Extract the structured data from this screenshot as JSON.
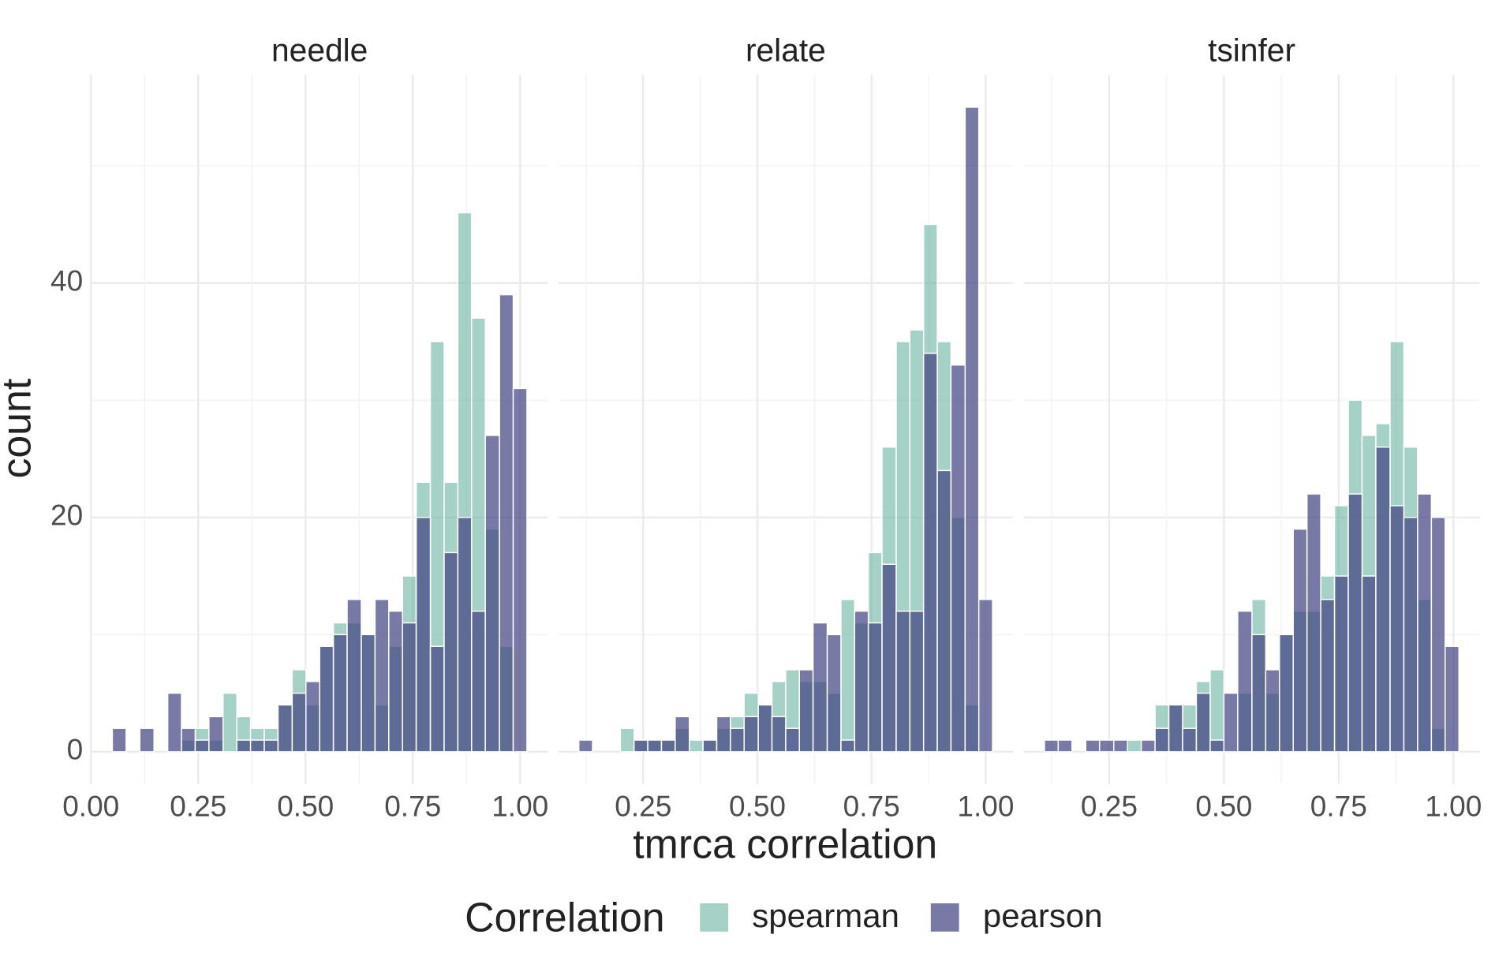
{
  "chart_data": {
    "type": "histogram",
    "xlabel": "tmrca correlation",
    "ylabel": "count",
    "legend_title": "Correlation",
    "series": [
      {
        "name": "spearman",
        "color": "#69b3a2",
        "opacity": 0.6
      },
      {
        "name": "pearson",
        "color": "#404080",
        "opacity": 0.7
      }
    ],
    "ylim": [
      -2.75,
      57.75
    ],
    "yticks": [
      0,
      20,
      40
    ],
    "y_minor_ticks": [
      10,
      30,
      50
    ],
    "grid": true,
    "facets": [
      {
        "title": "needle",
        "xlim": [
          0.002,
          1.064
        ],
        "xticks": [
          {
            "value": 0,
            "label": "0.00"
          },
          {
            "value": 0.25,
            "label": "0.25"
          },
          {
            "value": 0.5,
            "label": "0.50"
          },
          {
            "value": 0.75,
            "label": "0.75"
          },
          {
            "value": 1,
            "label": "1.00"
          }
        ],
        "x_minor_ticks": [
          0.125,
          0.375,
          0.625,
          0.875
        ],
        "bins": [
          0.05,
          0.082,
          0.114,
          0.147,
          0.179,
          0.211,
          0.243,
          0.275,
          0.308,
          0.34,
          0.372,
          0.404,
          0.436,
          0.469,
          0.501,
          0.533,
          0.565,
          0.597,
          0.63,
          0.662,
          0.694,
          0.726,
          0.758,
          0.791,
          0.823,
          0.855,
          0.887,
          0.919,
          0.952,
          0.984,
          1.016
        ],
        "counts": [
          [
            0,
            0,
            0,
            0,
            0,
            1,
            2,
            1,
            5,
            3,
            2,
            2,
            4,
            7,
            4,
            9,
            11,
            11,
            10,
            4,
            9,
            15,
            23,
            35,
            23,
            46,
            37,
            19,
            9,
            0
          ],
          [
            2,
            0,
            2,
            0,
            5,
            2,
            1,
            3,
            0,
            1,
            1,
            1,
            4,
            5,
            6,
            9,
            10,
            13,
            10,
            13,
            12,
            11,
            20,
            9,
            17,
            20,
            12,
            27,
            39,
            31
          ]
        ]
      },
      {
        "title": "relate",
        "xlim": [
          0.064,
          1.06
        ],
        "xticks": [
          {
            "value": 0.25,
            "label": "0.25"
          },
          {
            "value": 0.5,
            "label": "0.50"
          },
          {
            "value": 0.75,
            "label": "0.75"
          },
          {
            "value": 1,
            "label": "1.00"
          }
        ],
        "x_minor_ticks": [
          0.125,
          0.375,
          0.625,
          0.875
        ],
        "bins": [
          0.109,
          0.139,
          0.169,
          0.2,
          0.23,
          0.26,
          0.29,
          0.32,
          0.351,
          0.381,
          0.411,
          0.441,
          0.471,
          0.502,
          0.532,
          0.562,
          0.592,
          0.622,
          0.653,
          0.683,
          0.713,
          0.743,
          0.773,
          0.804,
          0.834,
          0.864,
          0.894,
          0.924,
          0.955,
          0.985,
          1.015
        ],
        "counts": [
          [
            0,
            0,
            0,
            2,
            1,
            1,
            1,
            2,
            1,
            1,
            2,
            3,
            5,
            4,
            6,
            7,
            6,
            6,
            5,
            13,
            11,
            17,
            26,
            35,
            36,
            45,
            35,
            20,
            4,
            0
          ],
          [
            1,
            0,
            0,
            0,
            1,
            1,
            1,
            3,
            0,
            1,
            3,
            2,
            3,
            4,
            3,
            2,
            7,
            11,
            10,
            1,
            12,
            11,
            16,
            12,
            12,
            34,
            24,
            33,
            55,
            13
          ]
        ]
      },
      {
        "title": "tsinfer",
        "xlim": [
          0.064,
          1.057
        ],
        "xticks": [
          {
            "value": 0.25,
            "label": "0.25"
          },
          {
            "value": 0.5,
            "label": "0.50"
          },
          {
            "value": 0.75,
            "label": "0.75"
          },
          {
            "value": 1,
            "label": "1.00"
          }
        ],
        "x_minor_ticks": [
          0.125,
          0.375,
          0.625,
          0.875
        ],
        "bins": [
          0.109,
          0.139,
          0.169,
          0.199,
          0.229,
          0.26,
          0.29,
          0.32,
          0.35,
          0.38,
          0.41,
          0.44,
          0.47,
          0.5,
          0.53,
          0.561,
          0.591,
          0.621,
          0.651,
          0.681,
          0.711,
          0.741,
          0.771,
          0.801,
          0.831,
          0.862,
          0.892,
          0.922,
          0.952,
          0.982,
          1.012
        ],
        "counts": [
          [
            0,
            0,
            0,
            0,
            0,
            0,
            1,
            0,
            4,
            4,
            4,
            6,
            7,
            0,
            5,
            13,
            5,
            10,
            12,
            12,
            15,
            21,
            30,
            27,
            28,
            35,
            26,
            13,
            2,
            0
          ],
          [
            1,
            1,
            0,
            1,
            1,
            1,
            0,
            1,
            2,
            4,
            2,
            5,
            1,
            5,
            12,
            10,
            7,
            10,
            19,
            22,
            13,
            15,
            22,
            15,
            26,
            21,
            20,
            22,
            20,
            9
          ]
        ]
      }
    ]
  }
}
